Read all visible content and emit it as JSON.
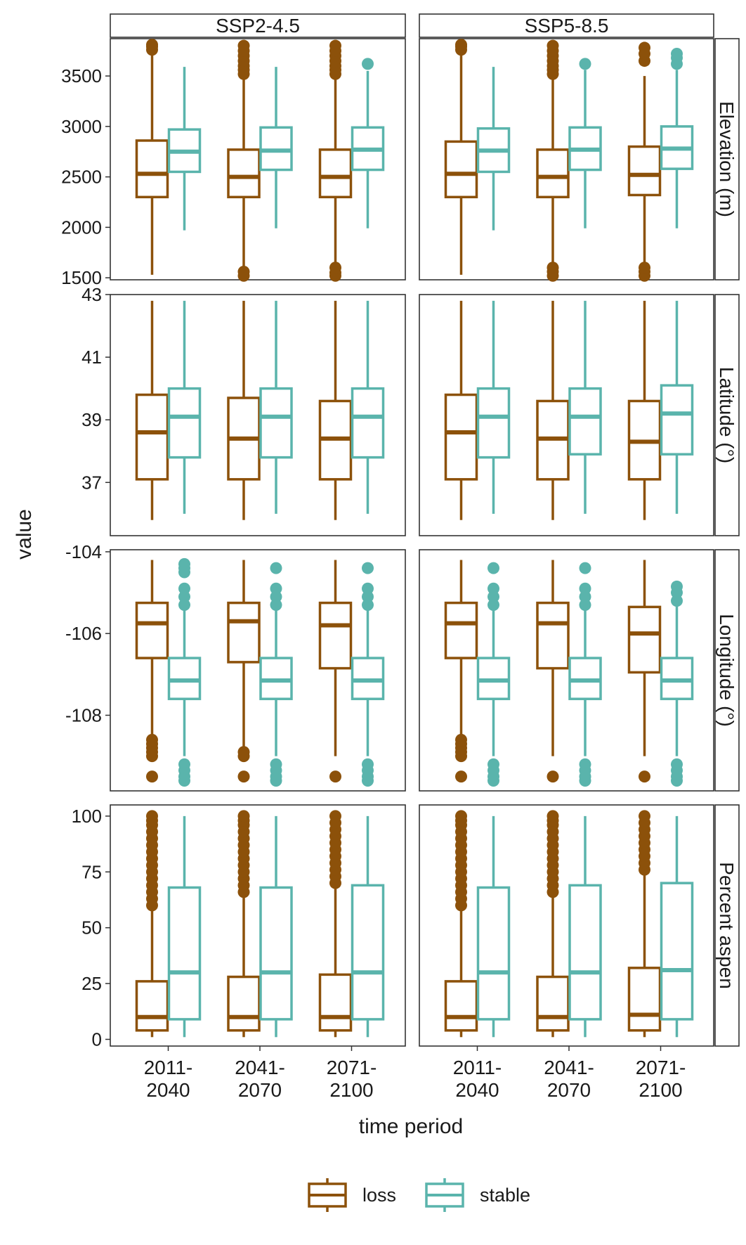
{
  "chart_data": {
    "type": "boxplot",
    "facet_cols": [
      "SSP2-4.5",
      "SSP5-8.5"
    ],
    "facet_rows": [
      "Elevation (m)",
      "Latitude (°)",
      "Longitude (°)",
      "Percent aspen"
    ],
    "categories": [
      [
        "2011-",
        "2040"
      ],
      [
        "2041-",
        "2070"
      ],
      [
        "2071-",
        "2100"
      ]
    ],
    "xlabel": "time period",
    "ylabel": "value",
    "grid": false,
    "legend_position": "bottom",
    "colors": {
      "loss": "#8c510a",
      "stable": "#5ab4ac"
    },
    "legend": [
      {
        "key": "loss",
        "label": "loss"
      },
      {
        "key": "stable",
        "label": "stable"
      }
    ],
    "panels": [
      {
        "name": "Elevation (m)",
        "ylim": [
          1480,
          3870
        ],
        "ticks": [
          1500,
          2000,
          2500,
          3000,
          3500
        ],
        "tick_labels": [
          "1500",
          "2000",
          "2500",
          "3000",
          "3500"
        ],
        "boxes": {
          "SSP2-4.5": [
            {
              "loss": {
                "q1": 2300,
                "med": 2530,
                "q3": 2860,
                "lo": 1530,
                "hi": 3750,
                "outliers": [
                  3760,
                  3790,
                  3810
                ]
              },
              "stable": {
                "q1": 2550,
                "med": 2750,
                "q3": 2970,
                "lo": 1970,
                "hi": 3590,
                "outliers": []
              }
            },
            {
              "loss": {
                "q1": 2300,
                "med": 2500,
                "q3": 2770,
                "lo": 1540,
                "hi": 3500,
                "outliers": [
                  1520,
                  1560,
                  3520,
                  3560,
                  3600,
                  3650,
                  3700,
                  3750,
                  3800
                ]
              },
              "stable": {
                "q1": 2570,
                "med": 2760,
                "q3": 2990,
                "lo": 1990,
                "hi": 3590,
                "outliers": []
              }
            },
            {
              "loss": {
                "q1": 2300,
                "med": 2500,
                "q3": 2770,
                "lo": 1540,
                "hi": 3500,
                "outliers": [
                  1520,
                  1550,
                  1600,
                  3520,
                  3560,
                  3600,
                  3650,
                  3700,
                  3750,
                  3800
                ]
              },
              "stable": {
                "q1": 2570,
                "med": 2770,
                "q3": 2990,
                "lo": 1990,
                "hi": 3550,
                "outliers": [
                  3620
                ]
              }
            }
          ],
          "SSP5-8.5": [
            {
              "loss": {
                "q1": 2300,
                "med": 2530,
                "q3": 2850,
                "lo": 1530,
                "hi": 3720,
                "outliers": [
                  3760,
                  3790,
                  3810
                ]
              },
              "stable": {
                "q1": 2550,
                "med": 2760,
                "q3": 2980,
                "lo": 1970,
                "hi": 3590,
                "outliers": []
              }
            },
            {
              "loss": {
                "q1": 2300,
                "med": 2500,
                "q3": 2770,
                "lo": 1540,
                "hi": 3500,
                "outliers": [
                  1520,
                  1560,
                  1600,
                  3520,
                  3560,
                  3600,
                  3650,
                  3700,
                  3750,
                  3800
                ]
              },
              "stable": {
                "q1": 2570,
                "med": 2770,
                "q3": 2990,
                "lo": 1990,
                "hi": 3560,
                "outliers": [
                  3620
                ]
              }
            },
            {
              "loss": {
                "q1": 2320,
                "med": 2520,
                "q3": 2800,
                "lo": 1540,
                "hi": 3500,
                "outliers": [
                  1520,
                  1560,
                  1600,
                  3650,
                  3720,
                  3780
                ]
              },
              "stable": {
                "q1": 2580,
                "med": 2780,
                "q3": 3000,
                "lo": 1990,
                "hi": 3560,
                "outliers": [
                  3620,
                  3680,
                  3720
                ]
              }
            }
          ]
        }
      },
      {
        "name": "Latitude (°)",
        "ylim": [
          35.3,
          43
        ],
        "ticks": [
          37,
          39,
          41,
          43
        ],
        "tick_labels": [
          "37",
          "39",
          "41",
          "43"
        ],
        "boxes": {
          "SSP2-4.5": [
            {
              "loss": {
                "q1": 37.1,
                "med": 38.6,
                "q3": 39.8,
                "lo": 35.8,
                "hi": 42.8,
                "outliers": []
              },
              "stable": {
                "q1": 37.8,
                "med": 39.1,
                "q3": 40.0,
                "lo": 36.0,
                "hi": 42.8,
                "outliers": []
              }
            },
            {
              "loss": {
                "q1": 37.1,
                "med": 38.4,
                "q3": 39.7,
                "lo": 35.8,
                "hi": 42.8,
                "outliers": []
              },
              "stable": {
                "q1": 37.8,
                "med": 39.1,
                "q3": 40.0,
                "lo": 36.0,
                "hi": 42.8,
                "outliers": []
              }
            },
            {
              "loss": {
                "q1": 37.1,
                "med": 38.4,
                "q3": 39.6,
                "lo": 35.8,
                "hi": 42.8,
                "outliers": []
              },
              "stable": {
                "q1": 37.8,
                "med": 39.1,
                "q3": 40.0,
                "lo": 36.0,
                "hi": 42.8,
                "outliers": []
              }
            }
          ],
          "SSP5-8.5": [
            {
              "loss": {
                "q1": 37.1,
                "med": 38.6,
                "q3": 39.8,
                "lo": 35.8,
                "hi": 42.8,
                "outliers": []
              },
              "stable": {
                "q1": 37.8,
                "med": 39.1,
                "q3": 40.0,
                "lo": 36.0,
                "hi": 42.8,
                "outliers": []
              }
            },
            {
              "loss": {
                "q1": 37.1,
                "med": 38.4,
                "q3": 39.6,
                "lo": 35.8,
                "hi": 42.8,
                "outliers": []
              },
              "stable": {
                "q1": 37.9,
                "med": 39.1,
                "q3": 40.0,
                "lo": 36.0,
                "hi": 42.8,
                "outliers": []
              }
            },
            {
              "loss": {
                "q1": 37.1,
                "med": 38.3,
                "q3": 39.6,
                "lo": 35.8,
                "hi": 42.8,
                "outliers": []
              },
              "stable": {
                "q1": 37.9,
                "med": 39.2,
                "q3": 40.1,
                "lo": 36.0,
                "hi": 42.8,
                "outliers": []
              }
            }
          ]
        }
      },
      {
        "name": "Longitude (°)",
        "ylim": [
          -109.85,
          -103.95
        ],
        "ticks": [
          -108,
          -106,
          -104
        ],
        "tick_labels": [
          "-108",
          "-106",
          "-104"
        ],
        "boxes": {
          "SSP2-4.5": [
            {
              "loss": {
                "q1": -106.6,
                "med": -105.75,
                "q3": -105.25,
                "lo": -108.5,
                "hi": -104.2,
                "outliers": [
                  -108.6,
                  -108.7,
                  -108.8,
                  -108.9,
                  -109.0,
                  -109.5
                ]
              },
              "stable": {
                "q1": -107.6,
                "med": -107.15,
                "q3": -106.6,
                "lo": -109.0,
                "hi": -105.0,
                "outliers": [
                  -104.3,
                  -104.4,
                  -104.5,
                  -104.9,
                  -105.1,
                  -105.3,
                  -109.2,
                  -109.35,
                  -109.5,
                  -109.6
                ]
              }
            },
            {
              "loss": {
                "q1": -106.7,
                "med": -105.7,
                "q3": -105.25,
                "lo": -108.8,
                "hi": -104.2,
                "outliers": [
                  -108.9,
                  -109.0,
                  -109.5
                ]
              },
              "stable": {
                "q1": -107.6,
                "med": -107.15,
                "q3": -106.6,
                "lo": -109.0,
                "hi": -105.0,
                "outliers": [
                  -104.4,
                  -104.9,
                  -105.1,
                  -105.3,
                  -109.2,
                  -109.35,
                  -109.5,
                  -109.6
                ]
              }
            },
            {
              "loss": {
                "q1": -106.85,
                "med": -105.8,
                "q3": -105.25,
                "lo": -109.0,
                "hi": -104.2,
                "outliers": [
                  -109.5
                ]
              },
              "stable": {
                "q1": -107.6,
                "med": -107.15,
                "q3": -106.6,
                "lo": -109.0,
                "hi": -105.0,
                "outliers": [
                  -104.4,
                  -104.9,
                  -105.1,
                  -105.3,
                  -109.2,
                  -109.35,
                  -109.5,
                  -109.6
                ]
              }
            }
          ],
          "SSP5-8.5": [
            {
              "loss": {
                "q1": -106.6,
                "med": -105.75,
                "q3": -105.25,
                "lo": -108.5,
                "hi": -104.2,
                "outliers": [
                  -108.6,
                  -108.7,
                  -108.8,
                  -108.9,
                  -109.0,
                  -109.5
                ]
              },
              "stable": {
                "q1": -107.6,
                "med": -107.15,
                "q3": -106.6,
                "lo": -109.0,
                "hi": -105.0,
                "outliers": [
                  -104.4,
                  -104.9,
                  -105.1,
                  -105.3,
                  -109.2,
                  -109.35,
                  -109.5,
                  -109.6
                ]
              }
            },
            {
              "loss": {
                "q1": -106.85,
                "med": -105.75,
                "q3": -105.25,
                "lo": -109.0,
                "hi": -104.2,
                "outliers": [
                  -109.5
                ]
              },
              "stable": {
                "q1": -107.6,
                "med": -107.15,
                "q3": -106.6,
                "lo": -109.0,
                "hi": -105.0,
                "outliers": [
                  -104.4,
                  -104.9,
                  -105.1,
                  -105.3,
                  -109.2,
                  -109.35,
                  -109.5,
                  -109.6
                ]
              }
            },
            {
              "loss": {
                "q1": -106.95,
                "med": -106.0,
                "q3": -105.35,
                "lo": -109.0,
                "hi": -104.2,
                "outliers": [
                  -109.5
                ]
              },
              "stable": {
                "q1": -107.6,
                "med": -107.15,
                "q3": -106.6,
                "lo": -109.0,
                "hi": -105.3,
                "outliers": [
                  -104.85,
                  -105.0,
                  -105.2,
                  -109.2,
                  -109.35,
                  -109.5,
                  -109.6
                ]
              }
            }
          ]
        }
      },
      {
        "name": "Percent aspen",
        "ylim": [
          -3,
          105
        ],
        "ticks": [
          0,
          25,
          50,
          75,
          100
        ],
        "tick_labels": [
          "0",
          "25",
          "50",
          "75",
          "100"
        ],
        "boxes": {
          "SSP2-4.5": [
            {
              "loss": {
                "q1": 4,
                "med": 10,
                "q3": 26,
                "lo": 1,
                "hi": 59,
                "outliers": [
                  60,
                  63,
                  66,
                  69,
                  72,
                  75,
                  78,
                  81,
                  84,
                  87,
                  90,
                  93,
                  96,
                  98,
                  100
                ]
              },
              "stable": {
                "q1": 9,
                "med": 30,
                "q3": 68,
                "lo": 1,
                "hi": 100,
                "outliers": []
              }
            },
            {
              "loss": {
                "q1": 4,
                "med": 10,
                "q3": 28,
                "lo": 1,
                "hi": 64,
                "outliers": [
                  66,
                  69,
                  72,
                  75,
                  78,
                  81,
                  84,
                  87,
                  90,
                  93,
                  96,
                  98,
                  100
                ]
              },
              "stable": {
                "q1": 9,
                "med": 30,
                "q3": 68,
                "lo": 1,
                "hi": 100,
                "outliers": []
              }
            },
            {
              "loss": {
                "q1": 4,
                "med": 10,
                "q3": 29,
                "lo": 1,
                "hi": 69,
                "outliers": [
                  70,
                  73,
                  76,
                  79,
                  82,
                  85,
                  88,
                  91,
                  94,
                  97,
                  100
                ]
              },
              "stable": {
                "q1": 9,
                "med": 30,
                "q3": 69,
                "lo": 1,
                "hi": 100,
                "outliers": []
              }
            }
          ],
          "SSP5-8.5": [
            {
              "loss": {
                "q1": 4,
                "med": 10,
                "q3": 26,
                "lo": 1,
                "hi": 59,
                "outliers": [
                  60,
                  63,
                  66,
                  69,
                  72,
                  75,
                  78,
                  81,
                  84,
                  87,
                  90,
                  93,
                  96,
                  98,
                  100
                ]
              },
              "stable": {
                "q1": 9,
                "med": 30,
                "q3": 68,
                "lo": 1,
                "hi": 100,
                "outliers": []
              }
            },
            {
              "loss": {
                "q1": 4,
                "med": 10,
                "q3": 28,
                "lo": 1,
                "hi": 64,
                "outliers": [
                  66,
                  69,
                  72,
                  75,
                  78,
                  81,
                  84,
                  87,
                  90,
                  93,
                  96,
                  98,
                  100
                ]
              },
              "stable": {
                "q1": 9,
                "med": 30,
                "q3": 69,
                "lo": 1,
                "hi": 100,
                "outliers": []
              }
            },
            {
              "loss": {
                "q1": 4,
                "med": 11,
                "q3": 32,
                "lo": 1,
                "hi": 74,
                "outliers": [
                  76,
                  79,
                  82,
                  85,
                  88,
                  91,
                  94,
                  97,
                  100
                ]
              },
              "stable": {
                "q1": 9,
                "med": 31,
                "q3": 70,
                "lo": 1,
                "hi": 100,
                "outliers": []
              }
            }
          ]
        }
      }
    ]
  }
}
